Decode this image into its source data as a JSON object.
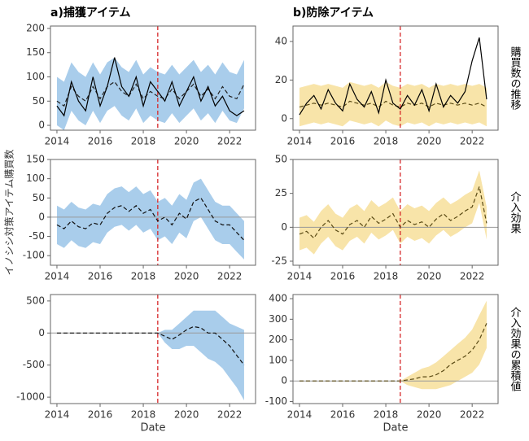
{
  "chart_data": [
    {
      "type": "line",
      "title": "a)捕獲アイテム",
      "x": [
        2014,
        2014.33,
        2014.67,
        2015,
        2015.33,
        2015.67,
        2016,
        2016.33,
        2016.67,
        2017,
        2017.33,
        2017.67,
        2018,
        2018.33,
        2018.67,
        2019,
        2019.33,
        2019.67,
        2020,
        2020.33,
        2020.67,
        2021,
        2021.33,
        2021.67,
        2022,
        2022.33,
        2022.67
      ],
      "xlim": [
        2013.7,
        2023.2
      ],
      "xticks": [
        2014,
        2016,
        2018,
        2020,
        2022
      ],
      "ylim": [
        -10,
        205
      ],
      "yticks": [
        0,
        50,
        100,
        150,
        200
      ],
      "vline": 2018.67,
      "vline_color": "#d62728",
      "band": {
        "color": "#a9cdeb",
        "lower": [
          0,
          -10,
          30,
          10,
          0,
          30,
          5,
          30,
          40,
          20,
          10,
          35,
          5,
          20,
          10,
          5,
          25,
          5,
          20,
          35,
          10,
          25,
          5,
          30,
          10,
          5,
          35
        ],
        "upper": [
          100,
          90,
          130,
          110,
          100,
          130,
          105,
          130,
          140,
          120,
          110,
          135,
          105,
          120,
          110,
          105,
          125,
          105,
          120,
          135,
          110,
          125,
          105,
          130,
          110,
          105,
          135
        ]
      },
      "series": [
        {
          "color": "#222222",
          "style": "dashed",
          "values": [
            50,
            40,
            80,
            60,
            50,
            80,
            55,
            80,
            90,
            70,
            60,
            85,
            55,
            70,
            60,
            55,
            75,
            55,
            70,
            85,
            60,
            75,
            55,
            80,
            60,
            55,
            85
          ]
        },
        {
          "color": "#000000",
          "style": "solid",
          "values": [
            40,
            20,
            90,
            50,
            30,
            100,
            40,
            80,
            140,
            80,
            60,
            100,
            40,
            90,
            70,
            50,
            90,
            40,
            70,
            100,
            50,
            80,
            40,
            60,
            30,
            20,
            30
          ]
        }
      ]
    },
    {
      "type": "line",
      "title": "b)防除アイテム",
      "side_label": "購買数の推移",
      "x": [
        2014,
        2014.33,
        2014.67,
        2015,
        2015.33,
        2015.67,
        2016,
        2016.33,
        2016.67,
        2017,
        2017.33,
        2017.67,
        2018,
        2018.33,
        2018.67,
        2019,
        2019.33,
        2019.67,
        2020,
        2020.33,
        2020.67,
        2021,
        2021.33,
        2021.67,
        2022,
        2022.33,
        2022.67
      ],
      "xlim": [
        2013.7,
        2023.2
      ],
      "xticks": [
        2014,
        2016,
        2018,
        2020,
        2022
      ],
      "ylim": [
        -6,
        48
      ],
      "yticks": [
        0,
        20,
        40
      ],
      "vline": 2018.67,
      "vline_color": "#d62728",
      "band": {
        "color": "#f8e4a9",
        "lower": [
          -4,
          -3,
          -2,
          -3,
          -2,
          -3,
          -4,
          -1,
          -2,
          -3,
          -2,
          -4,
          -1,
          -3,
          -4,
          -2,
          -3,
          -2,
          -4,
          -2,
          -3,
          -2,
          -3,
          -2,
          -3,
          -2,
          -4
        ],
        "upper": [
          16,
          17,
          18,
          17,
          18,
          17,
          16,
          19,
          18,
          17,
          18,
          16,
          19,
          17,
          16,
          18,
          17,
          18,
          16,
          18,
          17,
          18,
          17,
          18,
          17,
          18,
          16
        ]
      },
      "series": [
        {
          "color": "#5a4a14",
          "style": "dashed",
          "values": [
            6,
            7,
            8,
            7,
            8,
            7,
            6,
            9,
            8,
            7,
            8,
            6,
            9,
            7,
            6,
            8,
            7,
            8,
            6,
            8,
            7,
            8,
            7,
            8,
            7,
            8,
            6
          ]
        },
        {
          "color": "#000000",
          "style": "solid",
          "values": [
            2,
            8,
            12,
            5,
            15,
            8,
            4,
            18,
            10,
            6,
            14,
            3,
            20,
            8,
            5,
            12,
            7,
            15,
            4,
            18,
            6,
            12,
            8,
            14,
            30,
            42,
            10
          ]
        }
      ]
    },
    {
      "type": "line",
      "ylabel": "イノシシ対策アイテム購買数",
      "x": [
        2014,
        2014.33,
        2014.67,
        2015,
        2015.33,
        2015.67,
        2016,
        2016.33,
        2016.67,
        2017,
        2017.33,
        2017.67,
        2018,
        2018.33,
        2018.67,
        2019,
        2019.33,
        2019.67,
        2020,
        2020.33,
        2020.67,
        2021,
        2021.33,
        2021.67,
        2022,
        2022.33,
        2022.67
      ],
      "xlim": [
        2013.7,
        2023.2
      ],
      "xticks": [
        2014,
        2016,
        2018,
        2020,
        2022
      ],
      "ylim": [
        -125,
        150
      ],
      "yticks": [
        -100,
        -50,
        0,
        50,
        100,
        150
      ],
      "vline": 2018.67,
      "vline_color": "#d62728",
      "hline": 0,
      "band": {
        "color": "#a9cdeb",
        "lower": [
          -70,
          -80,
          -60,
          -75,
          -80,
          -65,
          -70,
          -40,
          -25,
          -20,
          -35,
          -20,
          -40,
          -30,
          -60,
          -50,
          -70,
          -40,
          -55,
          -10,
          0,
          -30,
          -60,
          -70,
          -70,
          -90,
          -110
        ],
        "upper": [
          30,
          20,
          40,
          25,
          20,
          35,
          30,
          60,
          75,
          80,
          65,
          80,
          60,
          70,
          40,
          50,
          30,
          60,
          45,
          90,
          100,
          70,
          40,
          30,
          30,
          10,
          -10
        ]
      },
      "series": [
        {
          "color": "#111111",
          "style": "dashed",
          "values": [
            -20,
            -30,
            -10,
            -25,
            -30,
            -15,
            -20,
            10,
            25,
            30,
            15,
            30,
            10,
            20,
            -10,
            0,
            -20,
            10,
            -5,
            40,
            50,
            20,
            -10,
            -20,
            -20,
            -40,
            -60
          ]
        }
      ]
    },
    {
      "type": "line",
      "side_label": "介入効果",
      "x": [
        2014,
        2014.33,
        2014.67,
        2015,
        2015.33,
        2015.67,
        2016,
        2016.33,
        2016.67,
        2017,
        2017.33,
        2017.67,
        2018,
        2018.33,
        2018.67,
        2019,
        2019.33,
        2019.67,
        2020,
        2020.33,
        2020.67,
        2021,
        2021.33,
        2021.67,
        2022,
        2022.33,
        2022.67
      ],
      "xlim": [
        2013.7,
        2023.2
      ],
      "xticks": [
        2014,
        2016,
        2018,
        2020,
        2022
      ],
      "ylim": [
        -28,
        50
      ],
      "yticks": [
        -25,
        0,
        25,
        50
      ],
      "vline": 2018.67,
      "vline_color": "#d62728",
      "hline": 0,
      "band": {
        "color": "#f8e4a9",
        "lower": [
          -17,
          -15,
          -20,
          -12,
          -7,
          -14,
          -17,
          -10,
          -7,
          -12,
          -4,
          -9,
          -6,
          -2,
          -12,
          -7,
          -10,
          -8,
          -12,
          -6,
          -2,
          -7,
          -4,
          0,
          3,
          18,
          -9
        ],
        "upper": [
          7,
          9,
          4,
          12,
          17,
          10,
          7,
          14,
          17,
          12,
          20,
          15,
          18,
          22,
          12,
          17,
          14,
          16,
          12,
          18,
          22,
          17,
          20,
          24,
          27,
          42,
          15
        ]
      },
      "series": [
        {
          "color": "#5a4a14",
          "style": "dashed",
          "values": [
            -5,
            -3,
            -8,
            0,
            5,
            -2,
            -5,
            2,
            5,
            0,
            8,
            3,
            6,
            10,
            0,
            5,
            2,
            4,
            0,
            6,
            10,
            5,
            8,
            12,
            15,
            30,
            3
          ]
        }
      ]
    },
    {
      "type": "line",
      "xlabel": "Date",
      "x": [
        2014,
        2014.33,
        2014.67,
        2015,
        2015.33,
        2015.67,
        2016,
        2016.33,
        2016.67,
        2017,
        2017.33,
        2017.67,
        2018,
        2018.33,
        2018.67,
        2019,
        2019.33,
        2019.67,
        2020,
        2020.33,
        2020.67,
        2021,
        2021.33,
        2021.67,
        2022,
        2022.33,
        2022.67
      ],
      "xlim": [
        2013.7,
        2023.2
      ],
      "xticks": [
        2014,
        2016,
        2018,
        2020,
        2022
      ],
      "ylim": [
        -1100,
        600
      ],
      "yticks": [
        -1000,
        -500,
        0,
        500
      ],
      "vline": 2018.67,
      "vline_color": "#d62728",
      "hline": 0,
      "band": {
        "color": "#a9cdeb",
        "lower": [
          0,
          0,
          0,
          0,
          0,
          0,
          0,
          0,
          0,
          0,
          0,
          0,
          0,
          0,
          0,
          -150,
          -250,
          -250,
          -200,
          -200,
          -300,
          -400,
          -450,
          -550,
          -700,
          -850,
          -1050
        ],
        "upper": [
          0,
          0,
          0,
          0,
          0,
          0,
          0,
          0,
          0,
          0,
          0,
          0,
          0,
          0,
          0,
          50,
          50,
          150,
          250,
          350,
          350,
          350,
          350,
          250,
          150,
          100,
          50
        ]
      },
      "series": [
        {
          "color": "#111111",
          "style": "dashed",
          "values": [
            0,
            0,
            0,
            0,
            0,
            0,
            0,
            0,
            0,
            0,
            0,
            0,
            0,
            0,
            0,
            -50,
            -100,
            -30,
            50,
            100,
            80,
            0,
            0,
            -100,
            -200,
            -350,
            -500
          ]
        }
      ]
    },
    {
      "type": "line",
      "side_label": "介入効果の累積値",
      "xlabel": "Date",
      "x": [
        2014,
        2014.33,
        2014.67,
        2015,
        2015.33,
        2015.67,
        2016,
        2016.33,
        2016.67,
        2017,
        2017.33,
        2017.67,
        2018,
        2018.33,
        2018.67,
        2019,
        2019.33,
        2019.67,
        2020,
        2020.33,
        2020.67,
        2021,
        2021.33,
        2021.67,
        2022,
        2022.33,
        2022.67
      ],
      "xlim": [
        2013.7,
        2023.2
      ],
      "xticks": [
        2014,
        2016,
        2018,
        2020,
        2022
      ],
      "ylim": [
        -110,
        420
      ],
      "yticks": [
        -100,
        0,
        100,
        200,
        300,
        400
      ],
      "vline": 2018.67,
      "vline_color": "#d62728",
      "hline": 0,
      "band": {
        "color": "#f8e4a9",
        "lower": [
          0,
          0,
          0,
          0,
          0,
          0,
          0,
          0,
          0,
          0,
          0,
          0,
          0,
          0,
          0,
          -20,
          -30,
          -40,
          -40,
          -40,
          -30,
          -20,
          0,
          20,
          40,
          80,
          160
        ],
        "upper": [
          0,
          0,
          0,
          0,
          0,
          0,
          0,
          0,
          0,
          0,
          0,
          0,
          0,
          0,
          0,
          20,
          40,
          60,
          70,
          90,
          120,
          150,
          180,
          210,
          250,
          320,
          390
        ]
      },
      "series": [
        {
          "color": "#5a4a14",
          "style": "dashed",
          "values": [
            0,
            0,
            0,
            0,
            0,
            0,
            0,
            0,
            0,
            0,
            0,
            0,
            0,
            0,
            0,
            5,
            10,
            20,
            20,
            30,
            50,
            80,
            100,
            120,
            150,
            200,
            280
          ]
        }
      ]
    }
  ]
}
